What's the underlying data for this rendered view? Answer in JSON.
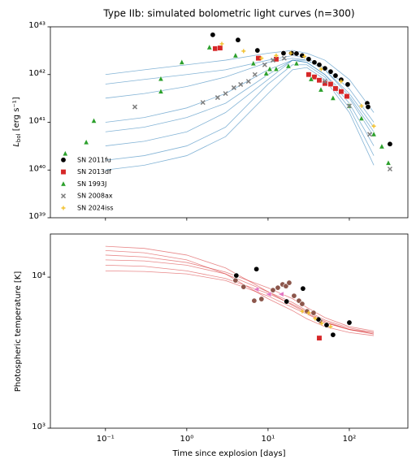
{
  "chart_data": [
    {
      "type": "scatter",
      "title": "Type IIb: simulated bolometric light curves (n=300)",
      "ylabel": {
        "main": "L",
        "sub": "bol",
        "rest": " [erg s⁻¹]"
      },
      "xscale": "log",
      "yscale": "log",
      "xlim": [
        0.021,
        525
      ],
      "ylim": [
        1e+39,
        1e+43
      ],
      "yticks": [
        {
          "value": 1e+39,
          "label": "10³⁹"
        },
        {
          "value": 1e+40,
          "label": "10⁴⁰"
        },
        {
          "value": 1e+41,
          "label": "10⁴¹"
        },
        {
          "value": 1e+42,
          "label": "10⁴²"
        },
        {
          "value": 1e+43,
          "label": "10⁴³"
        }
      ],
      "legend": "lower left",
      "model_color": "#1f77b4",
      "model_x": [
        0.1,
        0.3,
        1,
        3,
        10,
        20,
        30,
        50,
        100,
        200
      ],
      "model_curves": [
        [
          1e+42,
          1.26e+42,
          1.6e+42,
          2e+42,
          2.8e+42,
          3.2e+42,
          2.8e+42,
          2e+42,
          7.9e+41,
          1.6e+41
        ],
        [
          3.2e+41,
          4e+41,
          5.6e+41,
          8.9e+41,
          1.8e+42,
          2.2e+42,
          2e+42,
          1.26e+42,
          4e+41,
          7.9e+40
        ],
        [
          1e+41,
          1.26e+41,
          2e+41,
          4e+41,
          1.26e+42,
          2e+42,
          1.8e+42,
          1e+42,
          3.2e+41,
          5e+40
        ],
        [
          3.2e+40,
          4e+40,
          6.3e+40,
          1.6e+41,
          7.9e+41,
          2e+42,
          1.8e+42,
          1e+42,
          2.5e+41,
          3.2e+40
        ],
        [
          1.6e+40,
          2e+40,
          3.2e+40,
          7.9e+40,
          6.3e+41,
          1.6e+42,
          1.6e+42,
          8.9e+41,
          2e+41,
          2e+40
        ],
        [
          1e+40,
          1.26e+40,
          2e+40,
          5e+40,
          4e+41,
          1.26e+42,
          1.4e+42,
          7.9e+41,
          1.6e+41,
          1.26e+40
        ],
        [
          6.3e+41,
          7.9e+41,
          1e+42,
          1.26e+42,
          2e+42,
          2.5e+42,
          2.2e+42,
          1.4e+42,
          5e+41,
          1e+41
        ],
        [
          6.3e+40,
          7.9e+40,
          1.26e+41,
          2.5e+41,
          1e+42,
          2e+42,
          2e+42,
          1.26e+42,
          3.5e+41,
          6.3e+40
        ]
      ],
      "series": [
        {
          "name": "SN 2011fu",
          "color": "#000000",
          "marker": "circle",
          "x": [
            2.09,
            4.27,
            7.4,
            15.5,
            19.5,
            22.4,
            26.3,
            31.6,
            37.2,
            42.7,
            50.1,
            58.9,
            67.6,
            79.4,
            95.5,
            166,
            170,
            316
          ],
          "values": [
            6.8e+42,
            5.3e+42,
            3.2e+42,
            2.8e+42,
            2.8e+42,
            2.75e+42,
            2.5e+42,
            2.1e+42,
            1.8e+42,
            1.6e+42,
            1.35e+42,
            1.15e+42,
            9.5e+41,
            7.8e+41,
            6.2e+41,
            2.5e+41,
            2.1e+41,
            3.5e+40
          ]
        },
        {
          "name": "SN 2013df",
          "color": "#d62728",
          "marker": "square",
          "x": [
            2.24,
            2.57,
            7.6,
            12.6,
            31.6,
            37.2,
            42.7,
            50.1,
            58.9,
            67.6,
            79.4,
            93.3
          ],
          "values": [
            3.5e+42,
            3.6e+42,
            2.2e+42,
            2.1e+42,
            1e+42,
            8.9e+41,
            7.6e+41,
            6.5e+41,
            6.3e+41,
            5.1e+41,
            4.4e+41,
            3.5e+41
          ]
        },
        {
          "name": "SN 1993J",
          "color": "#2ca02c",
          "marker": "triangle",
          "x": [
            0.032,
            0.058,
            0.072,
            0.48,
            0.48,
            0.87,
            1.9,
            3.98,
            6.6,
            9.5,
            10.5,
            12.6,
            17.8,
            22.4,
            33.9,
            44.7,
            63,
            100,
            141,
            200,
            251,
            302
          ],
          "values": [
            2.2e+40,
            3.8e+40,
            1.07e+41,
            8.1e+41,
            4.4e+41,
            1.8e+42,
            3.7e+42,
            2.5e+42,
            1.7e+42,
            1.05e+42,
            1.3e+42,
            1.3e+42,
            1.5e+42,
            1.7e+42,
            8e+41,
            4.8e+41,
            3.2e+41,
            2.2e+41,
            1.2e+41,
            5.6e+40,
            3.1e+40,
            1.4e+40
          ]
        },
        {
          "name": "SN 2008ax",
          "color": "#7f7f7f",
          "marker": "x",
          "x": [
            0.23,
            1.58,
            2.4,
            3.0,
            3.8,
            4.6,
            5.75,
            6.9,
            9.1,
            11.5,
            15.8,
            50,
            100,
            178,
            316
          ],
          "values": [
            2.1e+41,
            2.6e+41,
            3.3e+41,
            4e+41,
            5.3e+41,
            6.2e+41,
            7.2e+41,
            1e+42,
            1.6e+42,
            2e+42,
            2.2e+42,
            7.2e+41,
            2.2e+41,
            5.6e+40,
            1.05e+40
          ]
        },
        {
          "name": "SN 2024iss",
          "color": "#f2c12e",
          "marker": "star",
          "x": [
            2.7,
            5.0,
            8.3,
            12.6,
            19,
            28,
            45,
            79,
            141,
            200
          ],
          "values": [
            4.4e+42,
            3.1e+42,
            2.2e+42,
            2.5e+42,
            2.8e+42,
            2.4e+42,
            1.3e+42,
            7.2e+41,
            2.2e+41,
            8.3e+40
          ]
        }
      ]
    },
    {
      "type": "scatter",
      "ylabel": "Photospheric temperature [K]",
      "xlabel": "Time since explosion [days]",
      "xscale": "log",
      "yscale": "log",
      "xlim": [
        0.021,
        525
      ],
      "ylim": [
        1000,
        19300
      ],
      "xticks": [
        {
          "value": 0.1,
          "label": "10⁻¹"
        },
        {
          "value": 1,
          "label": "10⁰"
        },
        {
          "value": 10,
          "label": "10¹"
        },
        {
          "value": 100,
          "label": "10²"
        }
      ],
      "yticks": [
        {
          "value": 1000,
          "label": "10³"
        },
        {
          "value": 10000,
          "label": "10⁴"
        }
      ],
      "model_color": "#d62728",
      "model_x": [
        0.1,
        0.3,
        1,
        3,
        10,
        20,
        30,
        50,
        100,
        200
      ],
      "model_curves": [
        [
          16000,
          15500,
          14000,
          11500,
          8000,
          6500,
          5800,
          5000,
          4500,
          4300
        ],
        [
          13000,
          12800,
          12000,
          10500,
          8000,
          6800,
          6000,
          5200,
          4600,
          4300
        ],
        [
          11000,
          10900,
          10500,
          9500,
          7500,
          6300,
          5700,
          5000,
          4500,
          4200
        ],
        [
          15000,
          14500,
          13000,
          10500,
          7200,
          6000,
          5300,
          4700,
          4300,
          4100
        ],
        [
          12000,
          11800,
          11000,
          9800,
          7800,
          6600,
          5900,
          5100,
          4500,
          4200
        ],
        [
          14000,
          13600,
          12500,
          10800,
          8500,
          7200,
          6300,
          5400,
          4700,
          4400
        ]
      ],
      "series": [
        {
          "color": "#8c564b",
          "marker": "circle",
          "x": [
            3.98,
            5.0,
            6.76,
            8.3,
            11.5,
            13.2,
            15.1,
            16.6,
            18.2,
            20.9,
            24,
            26.3,
            30.2,
            36.3,
            43.7
          ],
          "values": [
            9520,
            8620,
            6980,
            7160,
            8200,
            8510,
            8950,
            8720,
            9170,
            7520,
            6980,
            6650,
            5940,
            5800,
            5130
          ]
        },
        {
          "color": "#000000",
          "marker": "circle",
          "x": [
            4.07,
            7.2,
            16.9,
            26.9,
            41.7,
            52.5,
            63,
            100
          ],
          "values": [
            10250,
            11300,
            6900,
            8400,
            5250,
            4820,
            4150,
            5000
          ]
        },
        {
          "color": "#d62728",
          "marker": "square",
          "x": [
            42.7
          ],
          "values": [
            3950
          ]
        },
        {
          "color": "#e377c2",
          "marker": "ltriangle",
          "x": [
            7.2,
            10.2,
            14.5
          ],
          "values": [
            8300,
            7710,
            7710
          ]
        },
        {
          "color": "#f2c12e",
          "marker": "star",
          "x": [
            26.3,
            31.6,
            38,
            45.7,
            58.9
          ],
          "values": [
            5940,
            5800,
            5320,
            4940,
            4700
          ]
        }
      ]
    }
  ]
}
